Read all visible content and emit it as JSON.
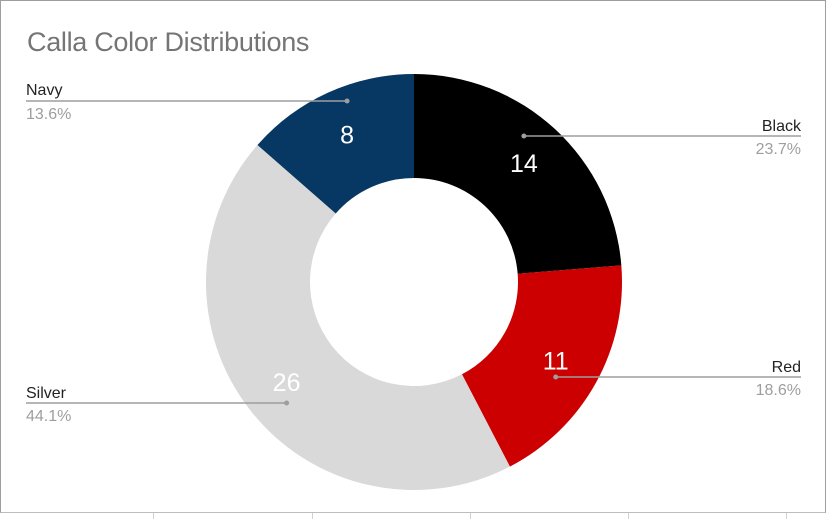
{
  "chart_data": {
    "type": "pie",
    "donut": true,
    "title": "Calla Color Distributions",
    "slices": [
      {
        "label": "Black",
        "value": 14,
        "percent": "23.7%",
        "color": "#000000",
        "value_color": "#ffffff",
        "side": "right"
      },
      {
        "label": "Red",
        "value": 11,
        "percent": "18.6%",
        "color": "#cc0000",
        "value_color": "#ffffff",
        "side": "right"
      },
      {
        "label": "Silver",
        "value": 26,
        "percent": "44.1%",
        "color": "#d9d9d9",
        "value_color": "#ffffff",
        "side": "left"
      },
      {
        "label": "Navy",
        "value": 8,
        "percent": "13.6%",
        "color": "#073763",
        "value_color": "#ffffff",
        "side": "left"
      }
    ],
    "start_angle": "top",
    "direction": "clockwise",
    "legend": "labeled leader lines"
  }
}
